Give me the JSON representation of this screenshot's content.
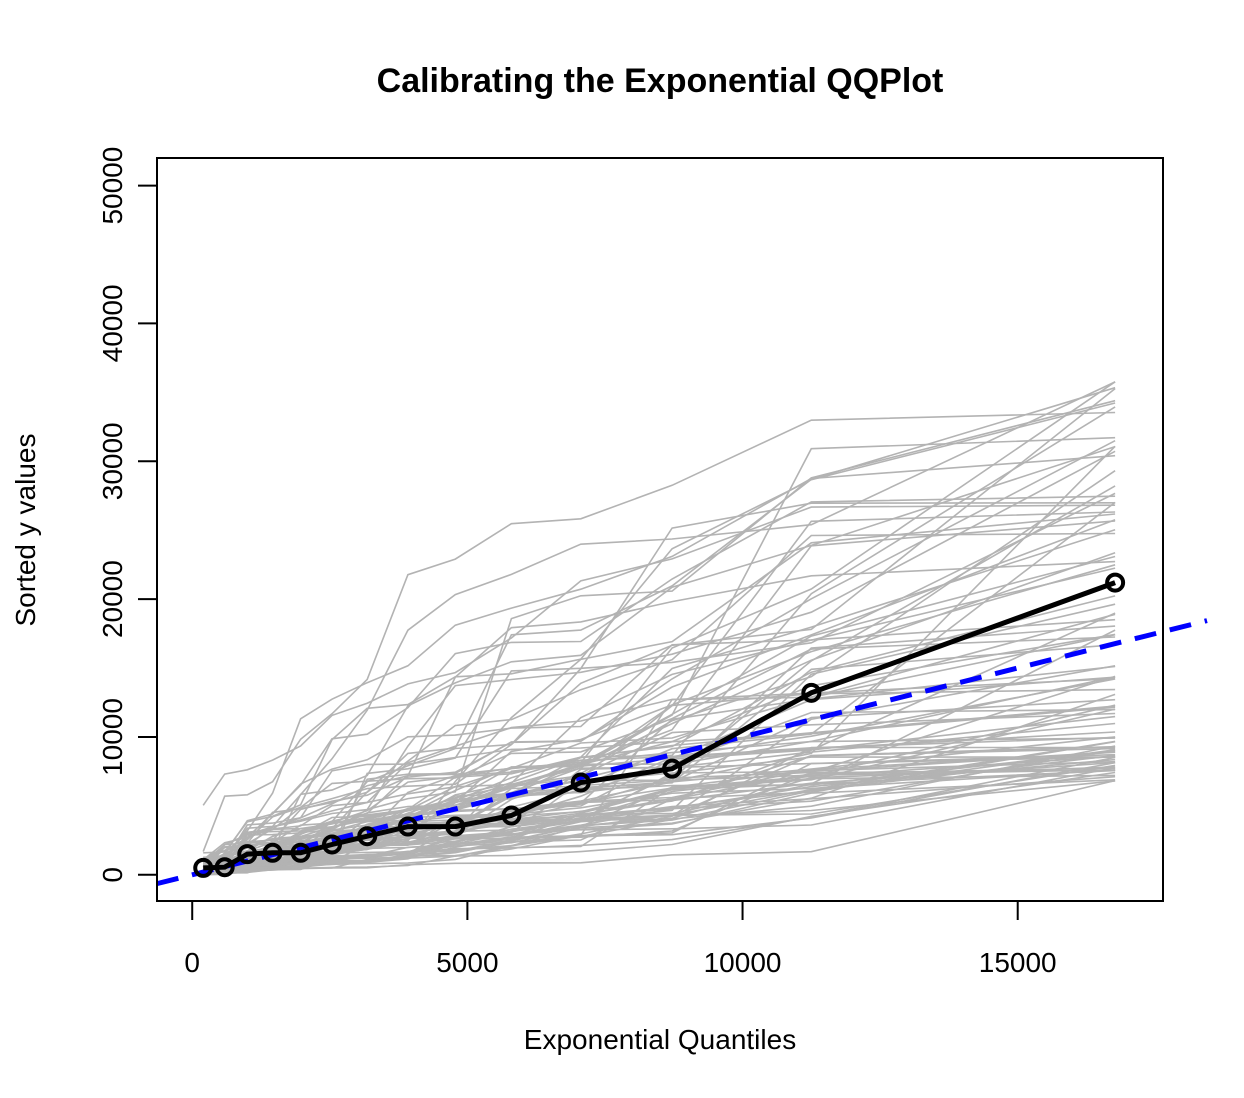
{
  "chart_data": {
    "type": "line",
    "title": "Calibrating the Exponential QQPlot",
    "xlabel": "Exponential Quantiles",
    "ylabel": "Sorted y values",
    "xlim": [
      -640,
      17640
    ],
    "ylim": [
      -1900,
      52000
    ],
    "x_ticks": [
      0,
      5000,
      10000,
      15000
    ],
    "x_tick_labels": [
      "0",
      "5000",
      "10000",
      "15000"
    ],
    "y_ticks": [
      0,
      10000,
      20000,
      30000,
      40000,
      50000
    ],
    "y_tick_labels": [
      "0",
      "10000",
      "20000",
      "30000",
      "40000",
      "50000"
    ],
    "grid": false,
    "x": [
      200,
      590,
      1000,
      1460,
      1970,
      2540,
      3180,
      3920,
      4780,
      5800,
      7060,
      8720,
      11250,
      16770
    ],
    "series": [
      {
        "role": "observed",
        "color": "#000000",
        "markers": "open-circle",
        "values": [
          500,
          550,
          1500,
          1600,
          1600,
          2200,
          2800,
          3500,
          3500,
          4300,
          6700,
          7700,
          13200,
          21200
        ]
      },
      {
        "role": "reference-line",
        "color": "#0000ff",
        "style": "dashed",
        "slope": 1.0,
        "intercept": 0
      },
      {
        "role": "simulated",
        "color": "#b3b3b3",
        "count": 100,
        "y_at_last_quantile_range": [
          6800,
          36200
        ]
      }
    ]
  }
}
